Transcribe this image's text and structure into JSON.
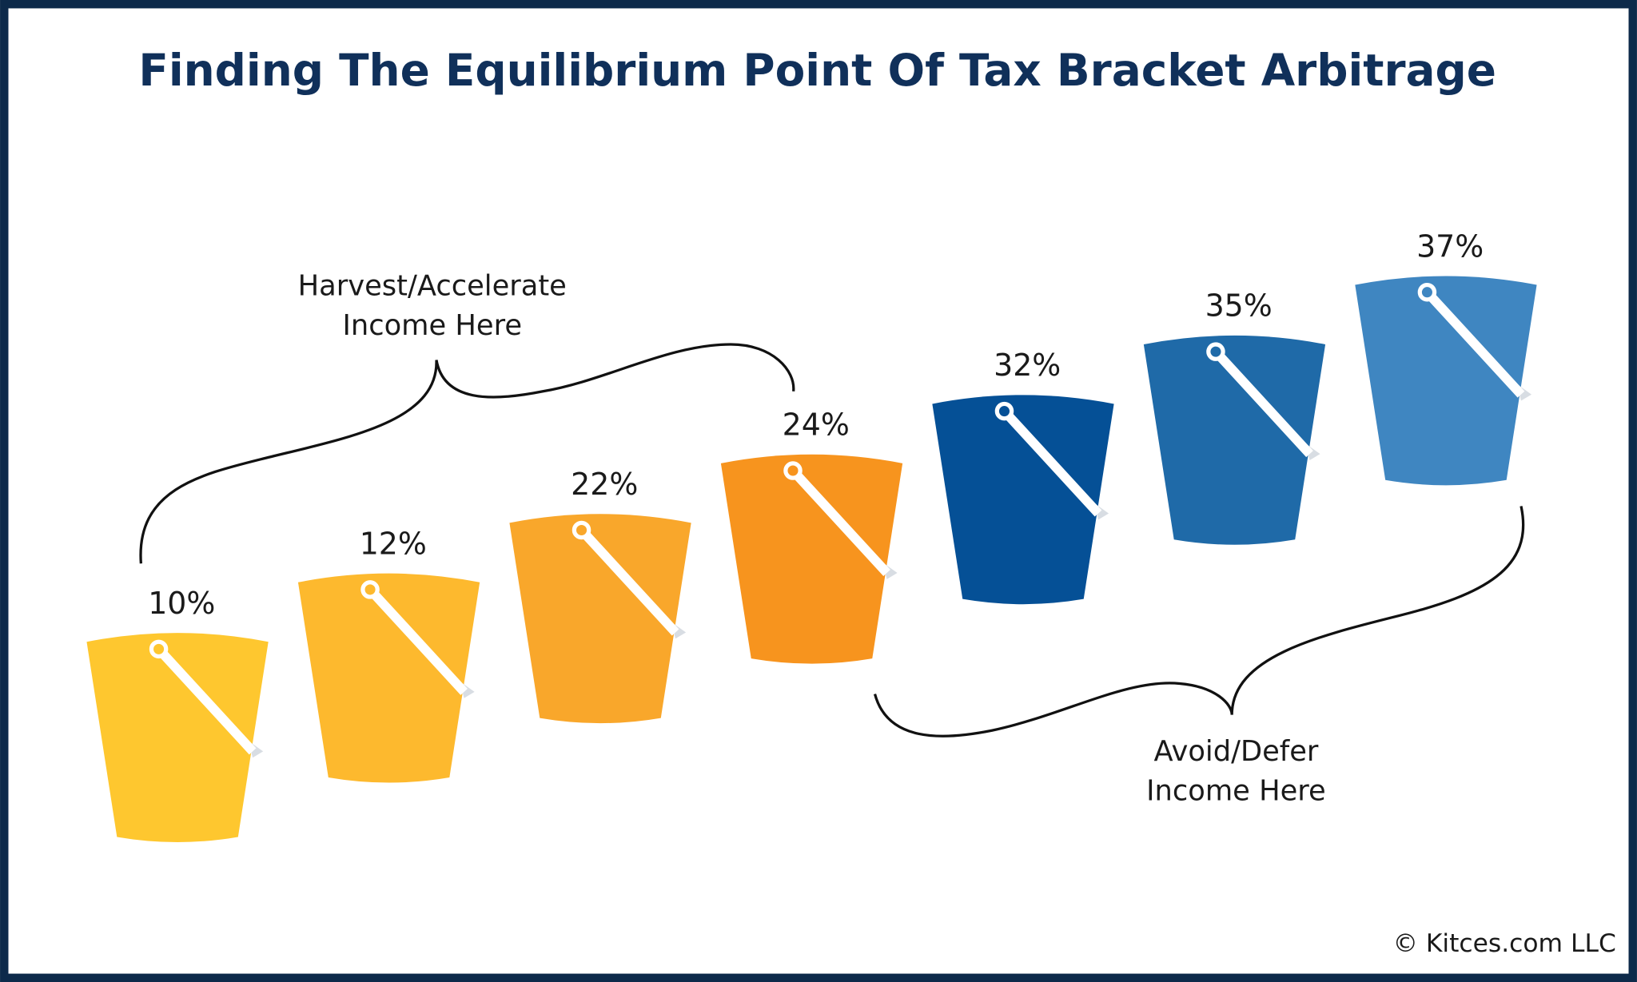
{
  "title": "Finding The Equilibrium Point Of Tax Bracket Arbitrage",
  "buckets": [
    {
      "label": "10%",
      "color": "#fec72f"
    },
    {
      "label": "12%",
      "color": "#fdb92e"
    },
    {
      "label": "22%",
      "color": "#f9a72b"
    },
    {
      "label": "24%",
      "color": "#f7941e"
    },
    {
      "label": "32%",
      "color": "#055096"
    },
    {
      "label": "35%",
      "color": "#1f6aa8"
    },
    {
      "label": "37%",
      "color": "#3f86c1"
    }
  ],
  "harvest_note": [
    "Harvest/Accelerate",
    "Income Here"
  ],
  "defer_note": [
    "Avoid/Defer",
    "Income Here"
  ],
  "copyright": "© Kitces.com LLC"
}
